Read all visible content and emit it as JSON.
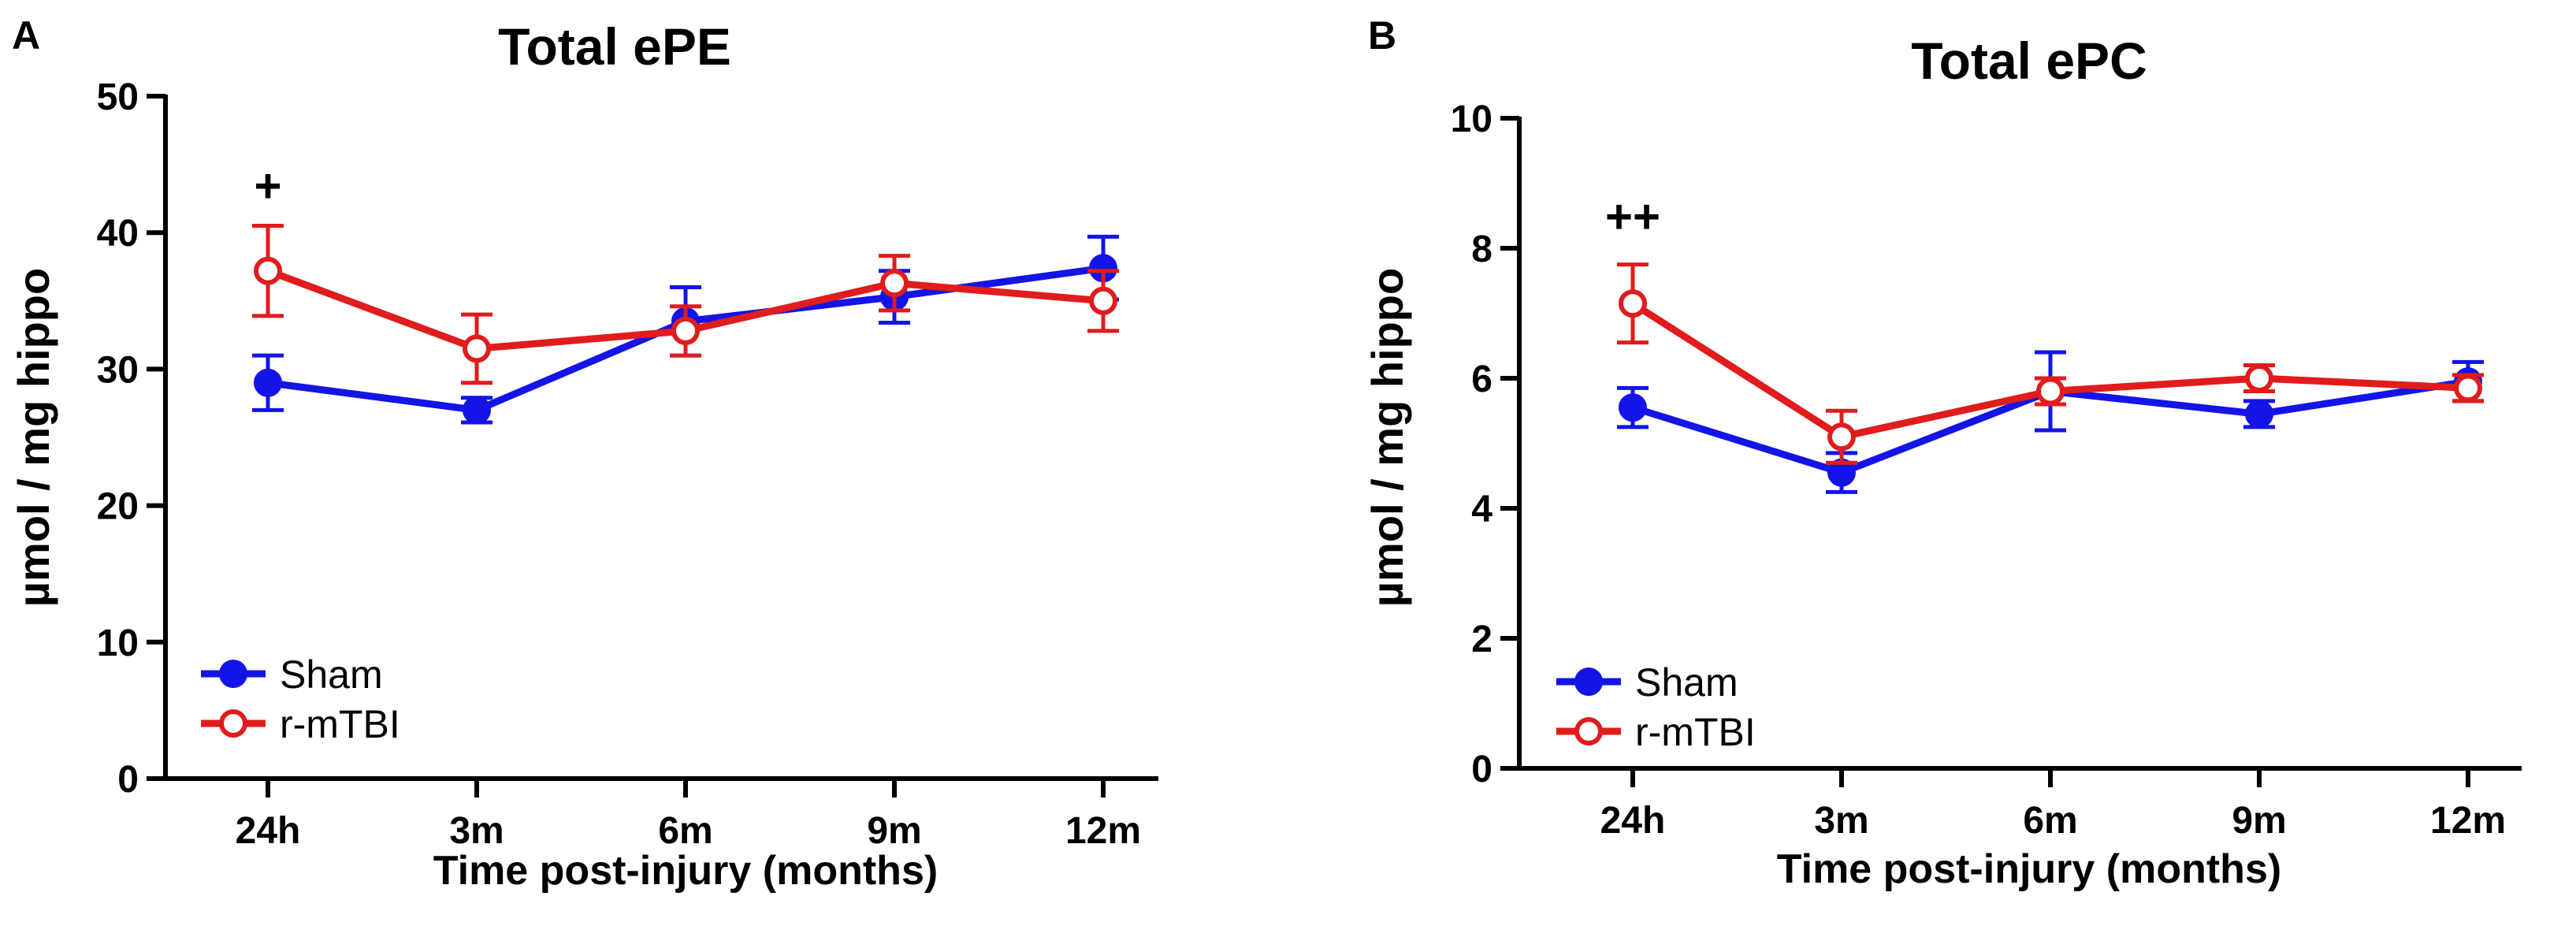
{
  "chart_data": [
    {
      "type": "line",
      "panel_label": "A",
      "title": "Total ePE",
      "ylabel": "µmol / mg hippo",
      "xlabel": "Time post-injury (months)",
      "categories": [
        "24h",
        "3m",
        "6m",
        "9m",
        "12m"
      ],
      "ylim": [
        0,
        50
      ],
      "yticks": [
        0,
        10,
        20,
        30,
        40,
        50
      ],
      "series": [
        {
          "name": "Sham",
          "color": "#1414e6",
          "marker": "filled-circle",
          "values": [
            29.0,
            27.0,
            33.5,
            35.3,
            37.4
          ],
          "errors": [
            2.0,
            0.9,
            2.5,
            1.9,
            2.3
          ]
        },
        {
          "name": "r-mTBI",
          "color": "#e01c1c",
          "marker": "open-circle",
          "values": [
            37.2,
            31.5,
            32.8,
            36.3,
            35.0
          ],
          "errors": [
            3.3,
            2.5,
            1.8,
            2.0,
            2.2
          ]
        }
      ],
      "annotations": [
        {
          "category": "24h",
          "text": "+"
        }
      ]
    },
    {
      "type": "line",
      "panel_label": "B",
      "title": "Total ePC",
      "ylabel": "µmol / mg hippo",
      "xlabel": "Time post-injury (months)",
      "categories": [
        "24h",
        "3m",
        "6m",
        "9m",
        "12m"
      ],
      "ylim": [
        0,
        10
      ],
      "yticks": [
        0,
        2,
        4,
        6,
        8,
        10
      ],
      "series": [
        {
          "name": "Sham",
          "color": "#1414e6",
          "marker": "filled-circle",
          "values": [
            5.55,
            4.55,
            5.8,
            5.45,
            5.95
          ],
          "errors": [
            0.3,
            0.3,
            0.6,
            0.2,
            0.3
          ]
        },
        {
          "name": "r-mTBI",
          "color": "#e01c1c",
          "marker": "open-circle",
          "values": [
            7.15,
            5.1,
            5.8,
            6.0,
            5.85
          ],
          "errors": [
            0.6,
            0.4,
            0.2,
            0.2,
            0.2
          ]
        }
      ],
      "annotations": [
        {
          "category": "24h",
          "text": "++"
        }
      ]
    }
  ]
}
